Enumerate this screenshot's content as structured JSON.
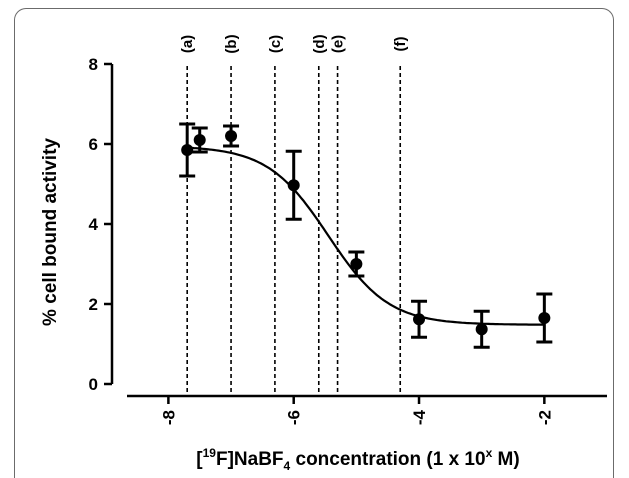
{
  "chart_data": {
    "type": "scatter",
    "title": "",
    "ylabel": "% cell bound activity",
    "xlabel": {
      "bracket_open": "[",
      "superscript": "19",
      "compound_a": "F]NaBF",
      "subscript": "4",
      "middle": " concentration (1 x 10",
      "exponent": "x",
      "end": " M)"
    },
    "xlim": [
      -8.9,
      -1.0
    ],
    "ylim": [
      -0.3,
      8.0
    ],
    "x_ticks": [
      -8,
      -6,
      -4,
      -2
    ],
    "x_tick_labels": [
      "-8",
      "-6",
      "-4",
      "-2"
    ],
    "y_ticks": [
      0,
      2,
      4,
      6,
      8
    ],
    "y_tick_labels": [
      "0",
      "2",
      "4",
      "6",
      "8"
    ],
    "grid": false,
    "legend": "none",
    "series": [
      {
        "marker": "circle",
        "color": "#000000",
        "points": [
          {
            "x": -7.7,
            "y": 5.85,
            "err": 0.65
          },
          {
            "x": -7.5,
            "y": 6.1,
            "err": 0.3
          },
          {
            "x": -7.0,
            "y": 6.2,
            "err": 0.25
          },
          {
            "x": -6.0,
            "y": 4.97,
            "err": 0.85
          },
          {
            "x": -5.0,
            "y": 3.0,
            "err": 0.3
          },
          {
            "x": -4.0,
            "y": 1.62,
            "err": 0.45
          },
          {
            "x": -3.0,
            "y": 1.37,
            "err": 0.45
          },
          {
            "x": -2.0,
            "y": 1.65,
            "err": 0.6
          }
        ]
      }
    ],
    "fit_curve": {
      "type": "sigmoid",
      "top": 5.95,
      "bottom": 1.48,
      "log_ic50": -5.45,
      "hill_slope": -0.9,
      "x_range": [
        -7.7,
        -2.0
      ]
    },
    "reference_lines": [
      {
        "x": -7.7,
        "label": "(a)"
      },
      {
        "x": -7.0,
        "label": "(b)"
      },
      {
        "x": -6.3,
        "label": "(c)"
      },
      {
        "x": -5.6,
        "label": "(d)"
      },
      {
        "x": -5.3,
        "label": "(e)"
      },
      {
        "x": -4.3,
        "label": "(f)"
      }
    ]
  }
}
